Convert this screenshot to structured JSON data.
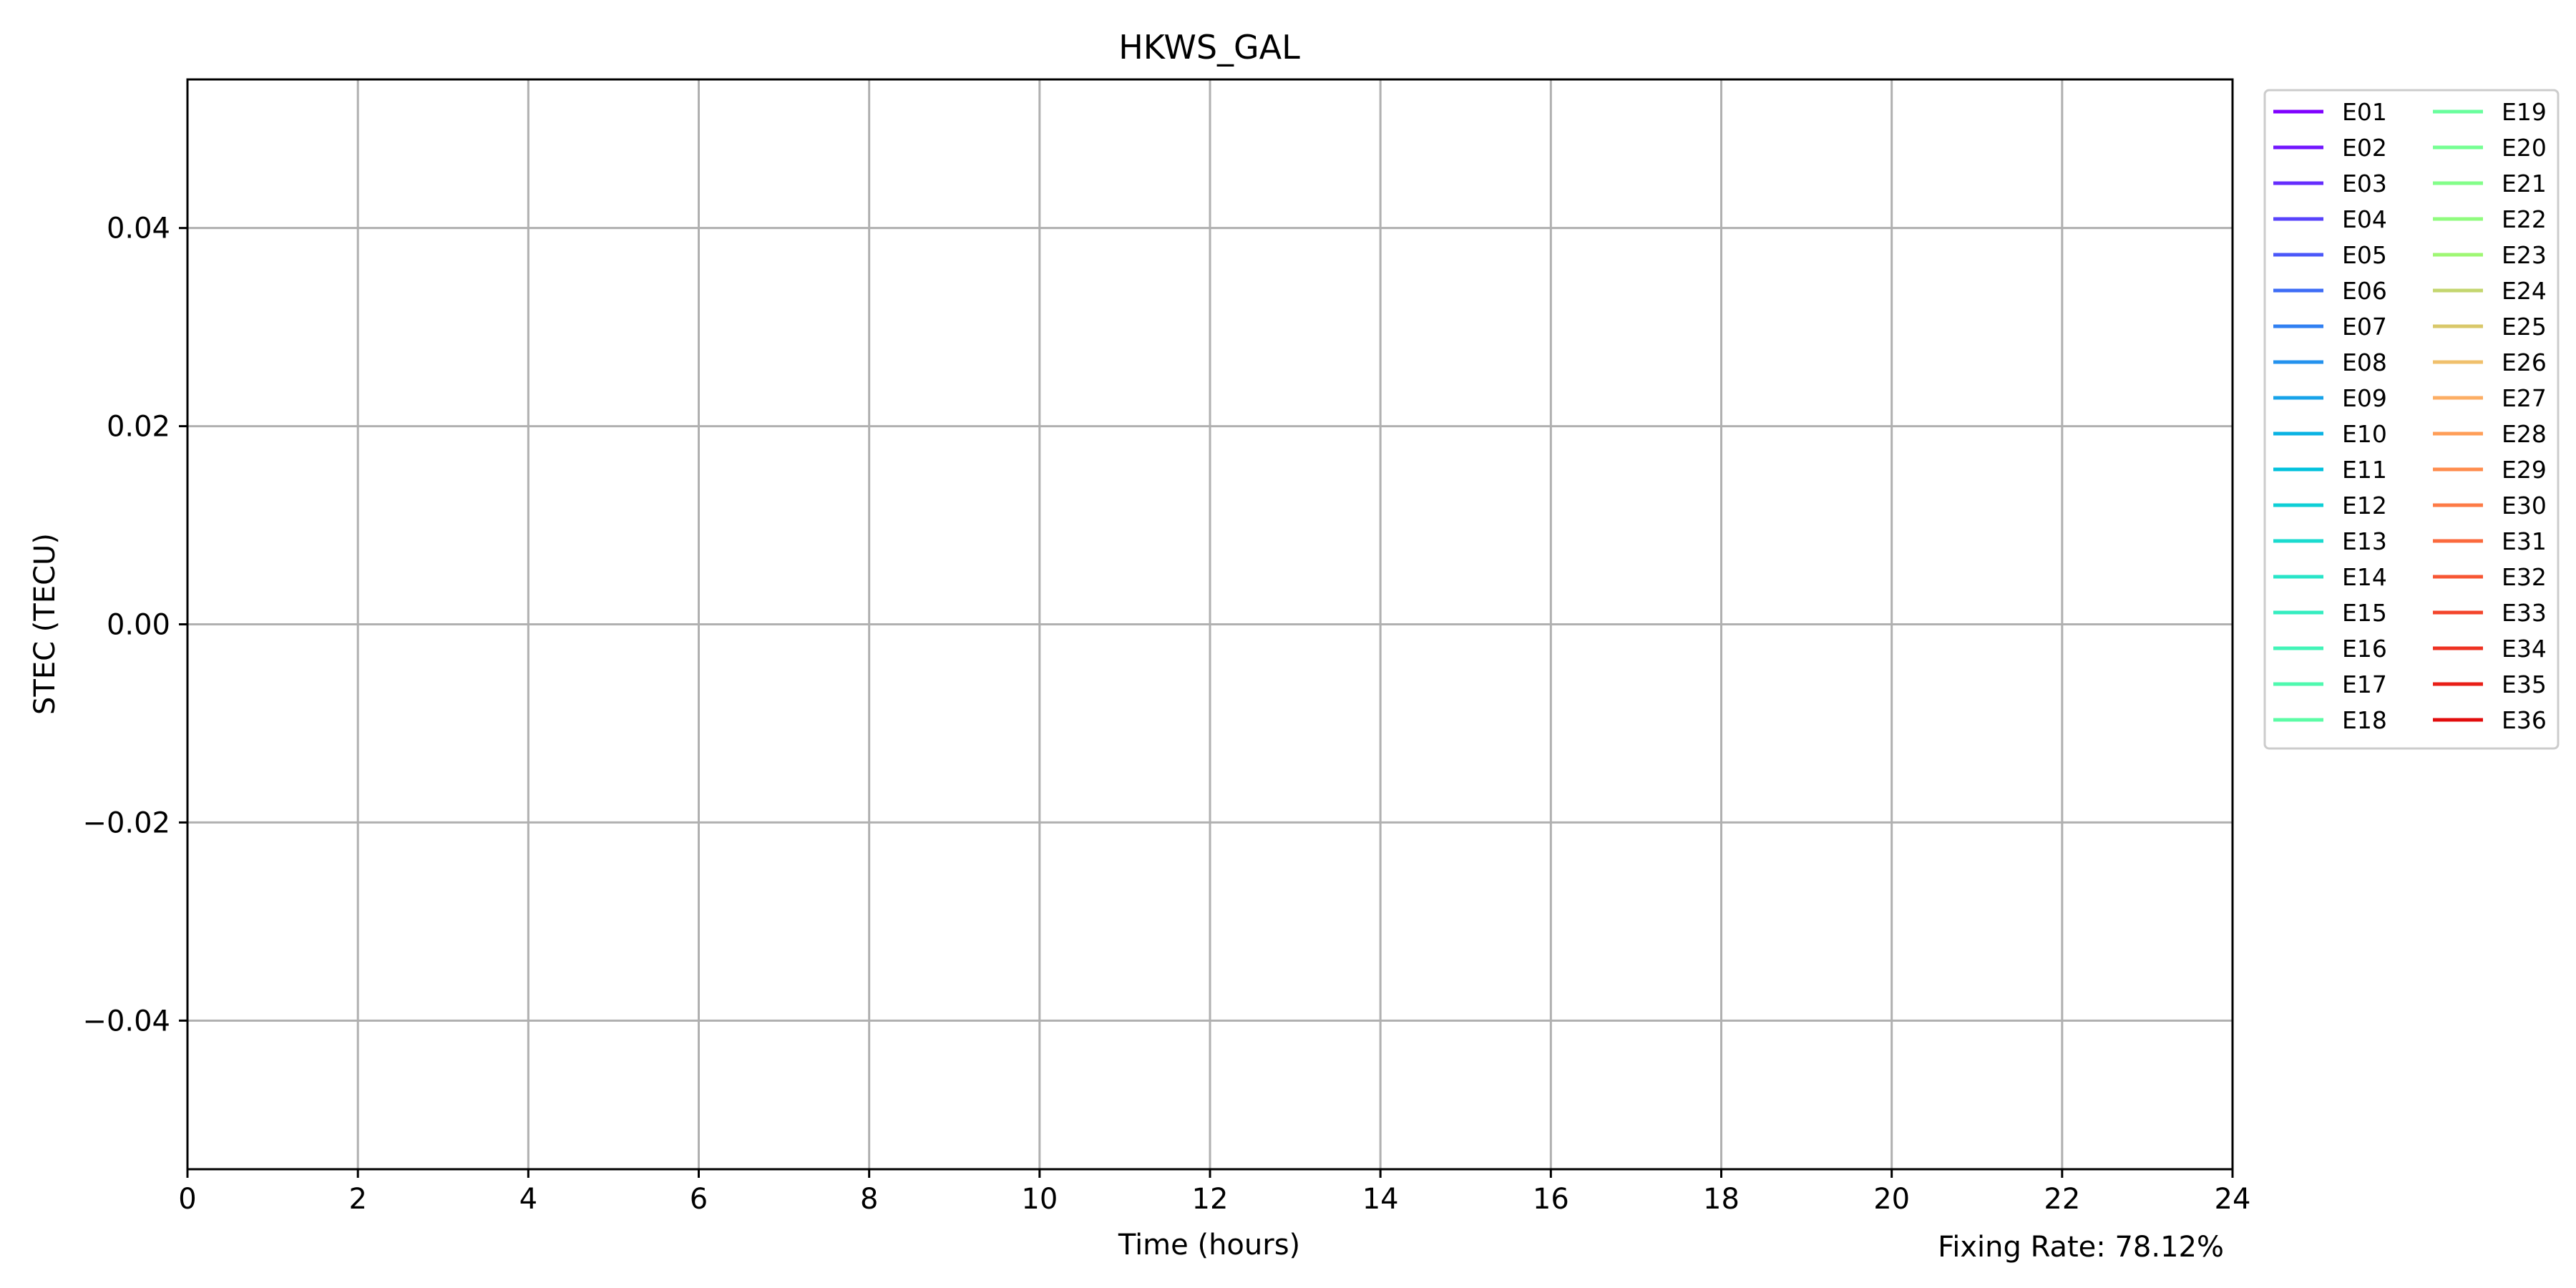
{
  "chart_data": {
    "type": "line",
    "title": "HKWS_GAL",
    "xlabel": "Time (hours)",
    "ylabel": "STEC (TECU)",
    "xlim": [
      0,
      24
    ],
    "ylim": [
      -0.055,
      0.055
    ],
    "xticks": [
      0,
      2,
      4,
      6,
      8,
      10,
      12,
      14,
      16,
      18,
      20,
      22,
      24
    ],
    "xtick_labels": [
      "0",
      "2",
      "4",
      "6",
      "8",
      "10",
      "12",
      "14",
      "16",
      "18",
      "20",
      "22",
      "24"
    ],
    "yticks": [
      -0.04,
      -0.02,
      0.0,
      0.02,
      0.04
    ],
    "ytick_labels": [
      "−0.04",
      "−0.02",
      "0.00",
      "0.02",
      "0.04"
    ],
    "grid": true,
    "legend_position": "outside-right",
    "legend_columns": 2,
    "annotation": "Fixing Rate: 78.12%",
    "series": [
      {
        "name": "E01",
        "color": "#7f00ff",
        "values": []
      },
      {
        "name": "E02",
        "color": "#7216fe",
        "values": []
      },
      {
        "name": "E03",
        "color": "#652dfd",
        "values": []
      },
      {
        "name": "E04",
        "color": "#5843fc",
        "values": []
      },
      {
        "name": "E05",
        "color": "#4b58f9",
        "values": []
      },
      {
        "name": "E06",
        "color": "#3e6df6",
        "values": []
      },
      {
        "name": "E07",
        "color": "#3180f2",
        "values": []
      },
      {
        "name": "E08",
        "color": "#2492ee",
        "values": []
      },
      {
        "name": "E09",
        "color": "#17a3e9",
        "values": []
      },
      {
        "name": "E10",
        "color": "#0ab3e3",
        "values": []
      },
      {
        "name": "E11",
        "color": "#02c2dd",
        "values": []
      },
      {
        "name": "E12",
        "color": "#0ecfd6",
        "values": []
      },
      {
        "name": "E13",
        "color": "#1bdbcf",
        "values": []
      },
      {
        "name": "E14",
        "color": "#28e5c8",
        "values": []
      },
      {
        "name": "E15",
        "color": "#35edc0",
        "values": []
      },
      {
        "name": "E16",
        "color": "#42f4b8",
        "values": []
      },
      {
        "name": "E17",
        "color": "#4ff9af",
        "values": []
      },
      {
        "name": "E18",
        "color": "#5cfca6",
        "values": []
      },
      {
        "name": "E19",
        "color": "#69fe9d",
        "values": []
      },
      {
        "name": "E20",
        "color": "#76ff93",
        "values": []
      },
      {
        "name": "E21",
        "color": "#83fe89",
        "values": []
      },
      {
        "name": "E22",
        "color": "#90fc7f",
        "values": []
      },
      {
        "name": "E23",
        "color": "#9ff774",
        "values": []
      },
      {
        "name": "E24",
        "color": "#c4d66f",
        "values": []
      },
      {
        "name": "E25",
        "color": "#d9c86a",
        "values": []
      },
      {
        "name": "E26",
        "color": "#f0c06c",
        "values": []
      },
      {
        "name": "E27",
        "color": "#fcae64",
        "values": []
      },
      {
        "name": "E28",
        "color": "#ff9e58",
        "values": []
      },
      {
        "name": "E29",
        "color": "#ff8d4e",
        "values": []
      },
      {
        "name": "E30",
        "color": "#fd7b46",
        "values": []
      },
      {
        "name": "E31",
        "color": "#fb6a3d",
        "values": []
      },
      {
        "name": "E32",
        "color": "#f75734",
        "values": []
      },
      {
        "name": "E33",
        "color": "#f3452b",
        "values": []
      },
      {
        "name": "E34",
        "color": "#ee3222",
        "values": []
      },
      {
        "name": "E35",
        "color": "#e81f17",
        "values": []
      },
      {
        "name": "E36",
        "color": "#e20c0c",
        "values": []
      }
    ]
  }
}
